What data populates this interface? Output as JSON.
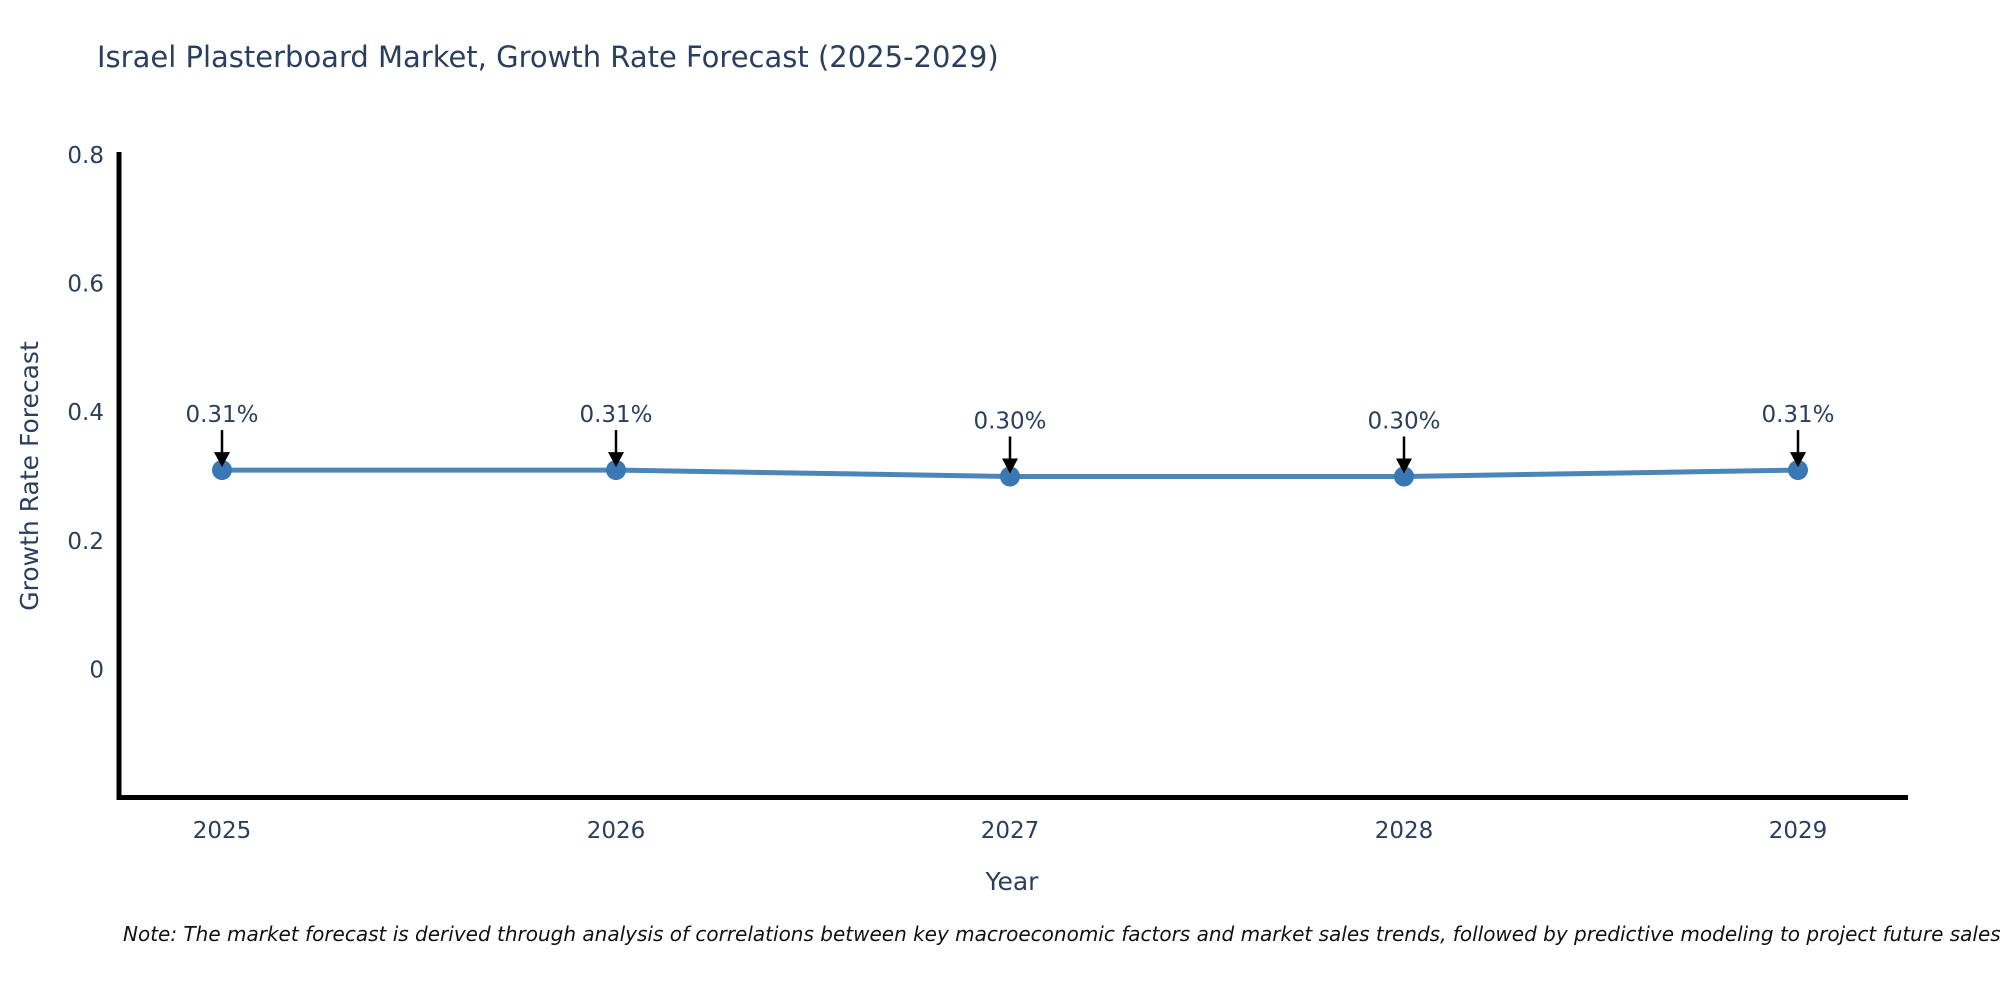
{
  "title": "Israel Plasterboard Market, Growth Rate Forecast (2025-2029)",
  "note": "Note: The market forecast is derived through analysis of correlations between key macroeconomic factors and market sales trends, followed by predictive modeling to project future sales",
  "colors": {
    "title_text": "#2a3f5f",
    "axis_text": "#2a3f5f",
    "axis_line": "#000000",
    "series_line": "#4a86b8",
    "marker_fill": "#3a78b4",
    "annotation_arrow": "#000000",
    "note_text": "#111111",
    "background": "#ffffff"
  },
  "chart_data": {
    "type": "line",
    "title": "Israel Plasterboard Market, Growth Rate Forecast (2025-2029)",
    "categories": [
      "2025",
      "2026",
      "2027",
      "2028",
      "2029"
    ],
    "values": [
      0.31,
      0.31,
      0.3,
      0.3,
      0.31
    ],
    "point_labels": [
      "0.31%",
      "0.31%",
      "0.30%",
      "0.30%",
      "0.31%"
    ],
    "xlabel": "Year",
    "ylabel": "Growth Rate Forecast",
    "y_ticks": [
      0,
      0.2,
      0.4,
      0.6,
      0.8
    ],
    "y_tick_labels": [
      "0",
      "0.2",
      "0.4",
      "0.6",
      "0.8"
    ],
    "ylim": [
      -0.2,
      0.8
    ],
    "grid": false,
    "legend": "none",
    "annotation_style": "value-label-with-down-arrow"
  }
}
